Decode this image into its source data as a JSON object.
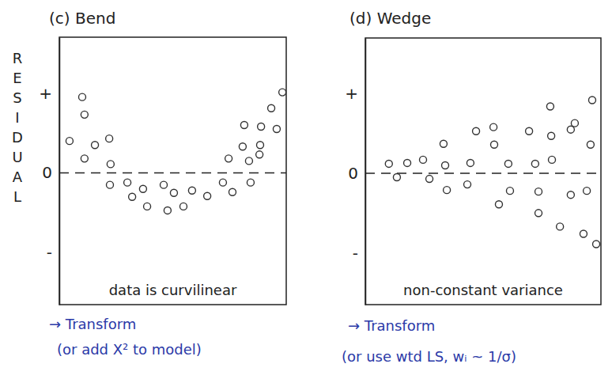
{
  "chart_data": [
    {
      "type": "scatter",
      "title": "(c) Bend",
      "ylabel": "RESIDUAL",
      "annotations": [
        "data is curvilinear",
        "→ Transform",
        "(or add X² to model)"
      ],
      "x": [
        0.45,
        1.01,
        1.11,
        1.11,
        1.57,
        2.2,
        2.26,
        2.23,
        3.0,
        3.21,
        3.69,
        3.87,
        4.6,
        4.77,
        5.05,
        5.47,
        5.85,
        6.52,
        7.21,
        7.63,
        7.46,
        8.08,
        8.15,
        8.36,
        8.43,
        8.82,
        8.85,
        8.89,
        9.34,
        9.58,
        9.83
      ],
      "values": [
        0.4,
        0.95,
        0.73,
        0.18,
        0.35,
        0.43,
        0.11,
        -0.15,
        -0.12,
        -0.3,
        -0.2,
        -0.42,
        -0.15,
        -0.47,
        -0.25,
        -0.42,
        -0.22,
        -0.29,
        -0.12,
        -0.24,
        0.18,
        0.33,
        0.6,
        0.15,
        -0.12,
        0.23,
        0.35,
        0.58,
        0.81,
        0.55,
        1.01
      ],
      "xlim": [
        0,
        10
      ],
      "ylim": [
        -1.65,
        1.7
      ],
      "yticks": [
        {
          "value": 1,
          "label": "+"
        },
        {
          "value": 0,
          "label": "0"
        },
        {
          "value": -1,
          "label": "-"
        }
      ],
      "tick_labels": "y",
      "marker": "open-circle",
      "color": "#333333"
    },
    {
      "type": "scatter",
      "title": "(d) Wedge",
      "annotations": [
        "non-constant variance",
        "→ Transform",
        "(or use wtd LS, wᵢ ~ 1/σ)"
      ],
      "x": [
        1.0,
        1.34,
        1.78,
        2.45,
        2.72,
        3.32,
        3.39,
        3.46,
        4.33,
        4.46,
        4.7,
        5.44,
        5.47,
        5.67,
        6.07,
        6.14,
        6.95,
        7.21,
        7.35,
        7.35,
        7.85,
        7.89,
        7.92,
        8.26,
        8.72,
        8.72,
        8.89,
        9.26,
        9.4,
        9.56,
        9.63,
        9.8
      ],
      "values": [
        0.12,
        -0.05,
        0.13,
        0.17,
        -0.07,
        0.37,
        0.1,
        -0.21,
        -0.14,
        0.13,
        0.53,
        0.58,
        0.36,
        -0.39,
        0.12,
        -0.22,
        0.53,
        0.12,
        -0.23,
        -0.5,
        0.84,
        0.47,
        0.17,
        -0.67,
        0.55,
        -0.27,
        0.63,
        -0.76,
        -0.22,
        0.36,
        0.92,
        -0.89
      ],
      "xlim": [
        0,
        10
      ],
      "ylim": [
        -1.65,
        1.7
      ],
      "yticks": [
        {
          "value": 1,
          "label": "+"
        },
        {
          "value": 0,
          "label": "0"
        },
        {
          "value": -1,
          "label": "-"
        }
      ],
      "tick_labels": "y",
      "marker": "open-circle",
      "color": "#333333"
    }
  ]
}
